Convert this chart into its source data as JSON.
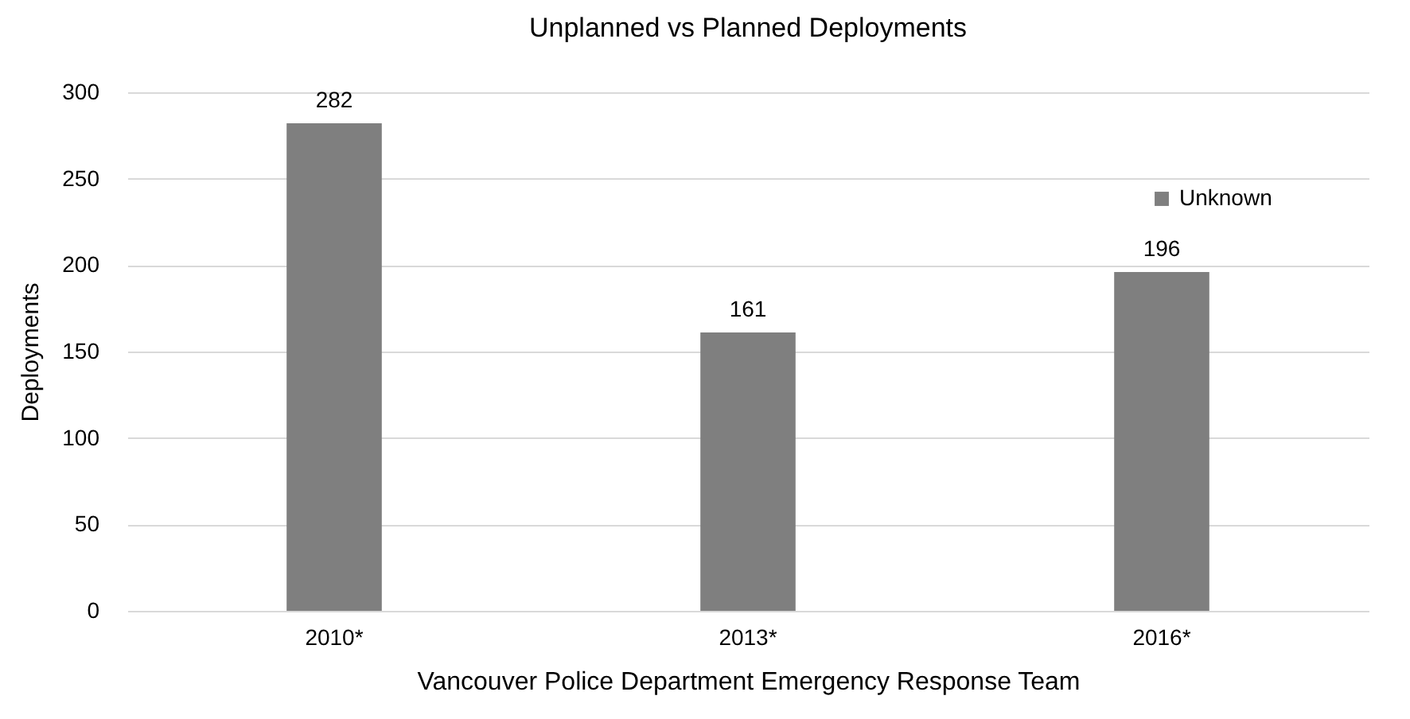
{
  "chart_data": {
    "type": "bar",
    "title": "Unplanned vs Planned Deployments",
    "xlabel": "Vancouver Police Department Emergency Response Team",
    "ylabel": "Deployments",
    "categories": [
      "2010*",
      "2013*",
      "2016*"
    ],
    "series": [
      {
        "name": "Unknown",
        "color": "#7f7f7f",
        "values": [
          282,
          161,
          196
        ]
      }
    ],
    "ylim": [
      0,
      300
    ],
    "yticks": [
      0,
      50,
      100,
      150,
      200,
      250,
      300
    ],
    "grid": "y",
    "legend": "top right",
    "data_labels": true
  }
}
